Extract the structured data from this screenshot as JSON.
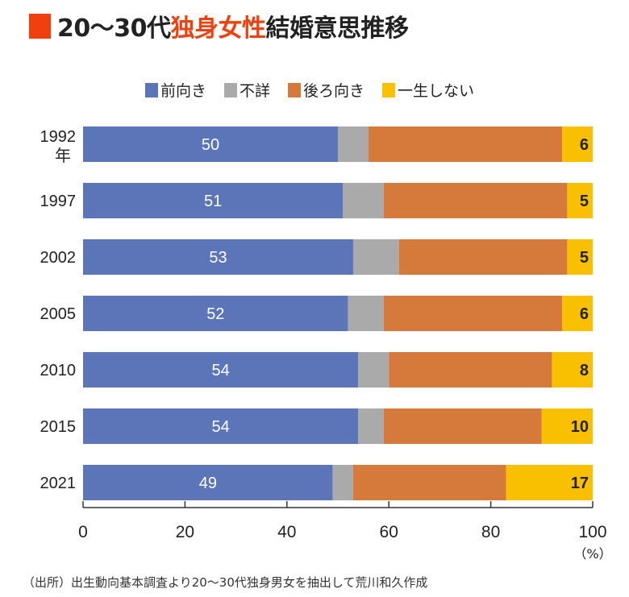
{
  "title": {
    "prefix": "20〜30代",
    "highlight": "独身女性",
    "suffix": "結婚意思推移"
  },
  "colors": {
    "accent": "#f04010",
    "series": [
      "#5b75b8",
      "#aaaaaa",
      "#d57a3a",
      "#f8c000"
    ]
  },
  "chart_data": {
    "type": "bar",
    "orientation": "horizontal",
    "stacked": true,
    "categories": [
      "1992年",
      "1997",
      "2002",
      "2005",
      "2010",
      "2015",
      "2021"
    ],
    "series": [
      {
        "name": "前向き",
        "values": [
          50,
          51,
          53,
          52,
          54,
          54,
          49
        ],
        "labeled": true
      },
      {
        "name": "不詳",
        "values": [
          6,
          8,
          9,
          7,
          6,
          5,
          4
        ],
        "labeled": false
      },
      {
        "name": "後ろ向き",
        "values": [
          38,
          36,
          33,
          35,
          32,
          31,
          30
        ],
        "labeled": false
      },
      {
        "name": "一生しない",
        "values": [
          6,
          5,
          5,
          6,
          8,
          10,
          17
        ],
        "labeled": true
      }
    ],
    "xlim": [
      0,
      100
    ],
    "xticks": [
      "0",
      "20",
      "40",
      "60",
      "80",
      "100"
    ],
    "xunit": "（%）",
    "legend": "top",
    "grid": false
  },
  "source": "（出所）出生動向基本調査より20〜30代独身男女を抽出して荒川和久作成"
}
